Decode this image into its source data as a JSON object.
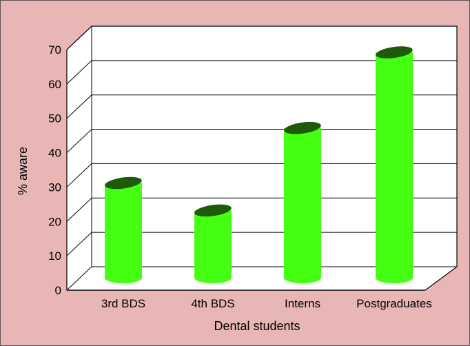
{
  "chart_data": {
    "type": "bar",
    "style": "3d-cylinder",
    "categories": [
      "3rd BDS",
      "4th BDS",
      "Interns",
      "Postgraduates"
    ],
    "values": [
      32,
      24,
      48,
      70
    ],
    "ylim": [
      0,
      70
    ],
    "yticks": [
      "0",
      "10",
      "20",
      "30",
      "40",
      "50",
      "60",
      "70"
    ],
    "xlabel": "Dental students",
    "ylabel": "% aware",
    "grid": true,
    "legend": "none"
  },
  "colors": {
    "background": "#e8b6b4",
    "plot_wall": "#ffffff",
    "bar_body": "#44ff11",
    "bar_top": "#1e5a08",
    "grid": "#000000"
  }
}
